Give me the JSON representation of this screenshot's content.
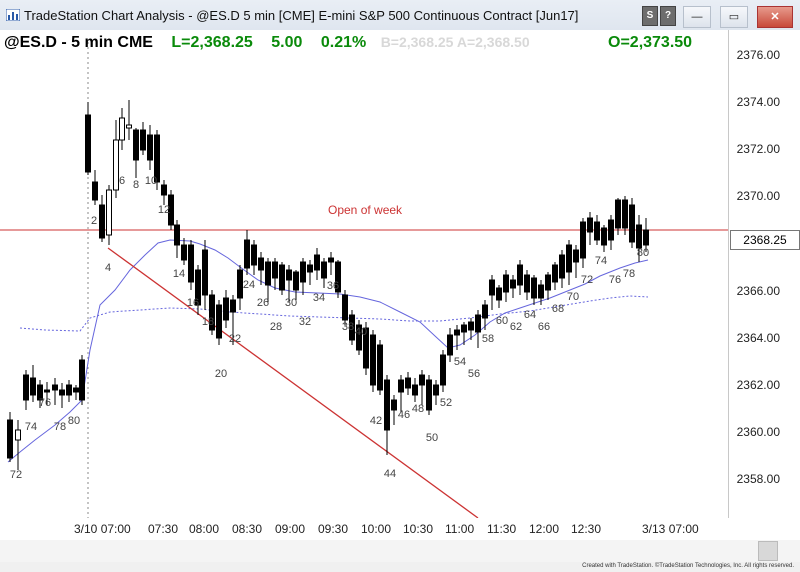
{
  "window": {
    "title": "TradeStation Chart Analysis - @ES.D 5 min [CME] E-mini S&P 500 Continuous Contract [Jun17]",
    "btn_min": "—",
    "btn_max": "▭",
    "btn_close": "✕",
    "toolbar_icons": [
      "symbol-link-icon",
      "sync-icon"
    ],
    "tool_btn_1": "S",
    "tool_btn_2": "?"
  },
  "header": {
    "symbol_label": "@ES.D - 5 min  CME",
    "last_label": "L=2,368.25",
    "net_change": "5.00",
    "pct_change": "0.21%",
    "faded_text": "B=2,368.25  A=2,368.50",
    "open_label": "O=2,373.50",
    "accent_green": "#0a8a0a"
  },
  "price_axis": {
    "labels": [
      "2376.00",
      "2374.00",
      "2372.00",
      "2370.00",
      "2366.00",
      "2364.00",
      "2362.00",
      "2360.00",
      "2358.00"
    ],
    "last_price_box": "2368.25",
    "last_price_hidden": "2368.00"
  },
  "time_axis": {
    "labels": [
      "3/10  07:00",
      "07:30",
      "08:00",
      "08:30",
      "09:00",
      "09:30",
      "10:00",
      "10:30",
      "11:00",
      "11:30",
      "12:00",
      "12:30",
      "3/13  07:00"
    ]
  },
  "annotations": {
    "open_of_week_label": "Open of week",
    "open_of_week_color": "#cc3333",
    "trendline_color": "#cc3333"
  },
  "bar_numbers": [
    "72",
    "74",
    "76",
    "78",
    "80",
    "2",
    "4",
    "6",
    "8",
    "10",
    "12",
    "14",
    "16",
    "18",
    "20",
    "22",
    "24",
    "26",
    "28",
    "30",
    "32",
    "34",
    "36",
    "38",
    "40",
    "42",
    "44",
    "46",
    "48",
    "50",
    "52",
    "54",
    "56",
    "58",
    "60",
    "62",
    "64",
    "66",
    "68",
    "70",
    "72",
    "74",
    "76",
    "78",
    "80"
  ],
  "footer": "Created with TradeStation. ©TradeStation Technologies, Inc. All rights reserved."
}
